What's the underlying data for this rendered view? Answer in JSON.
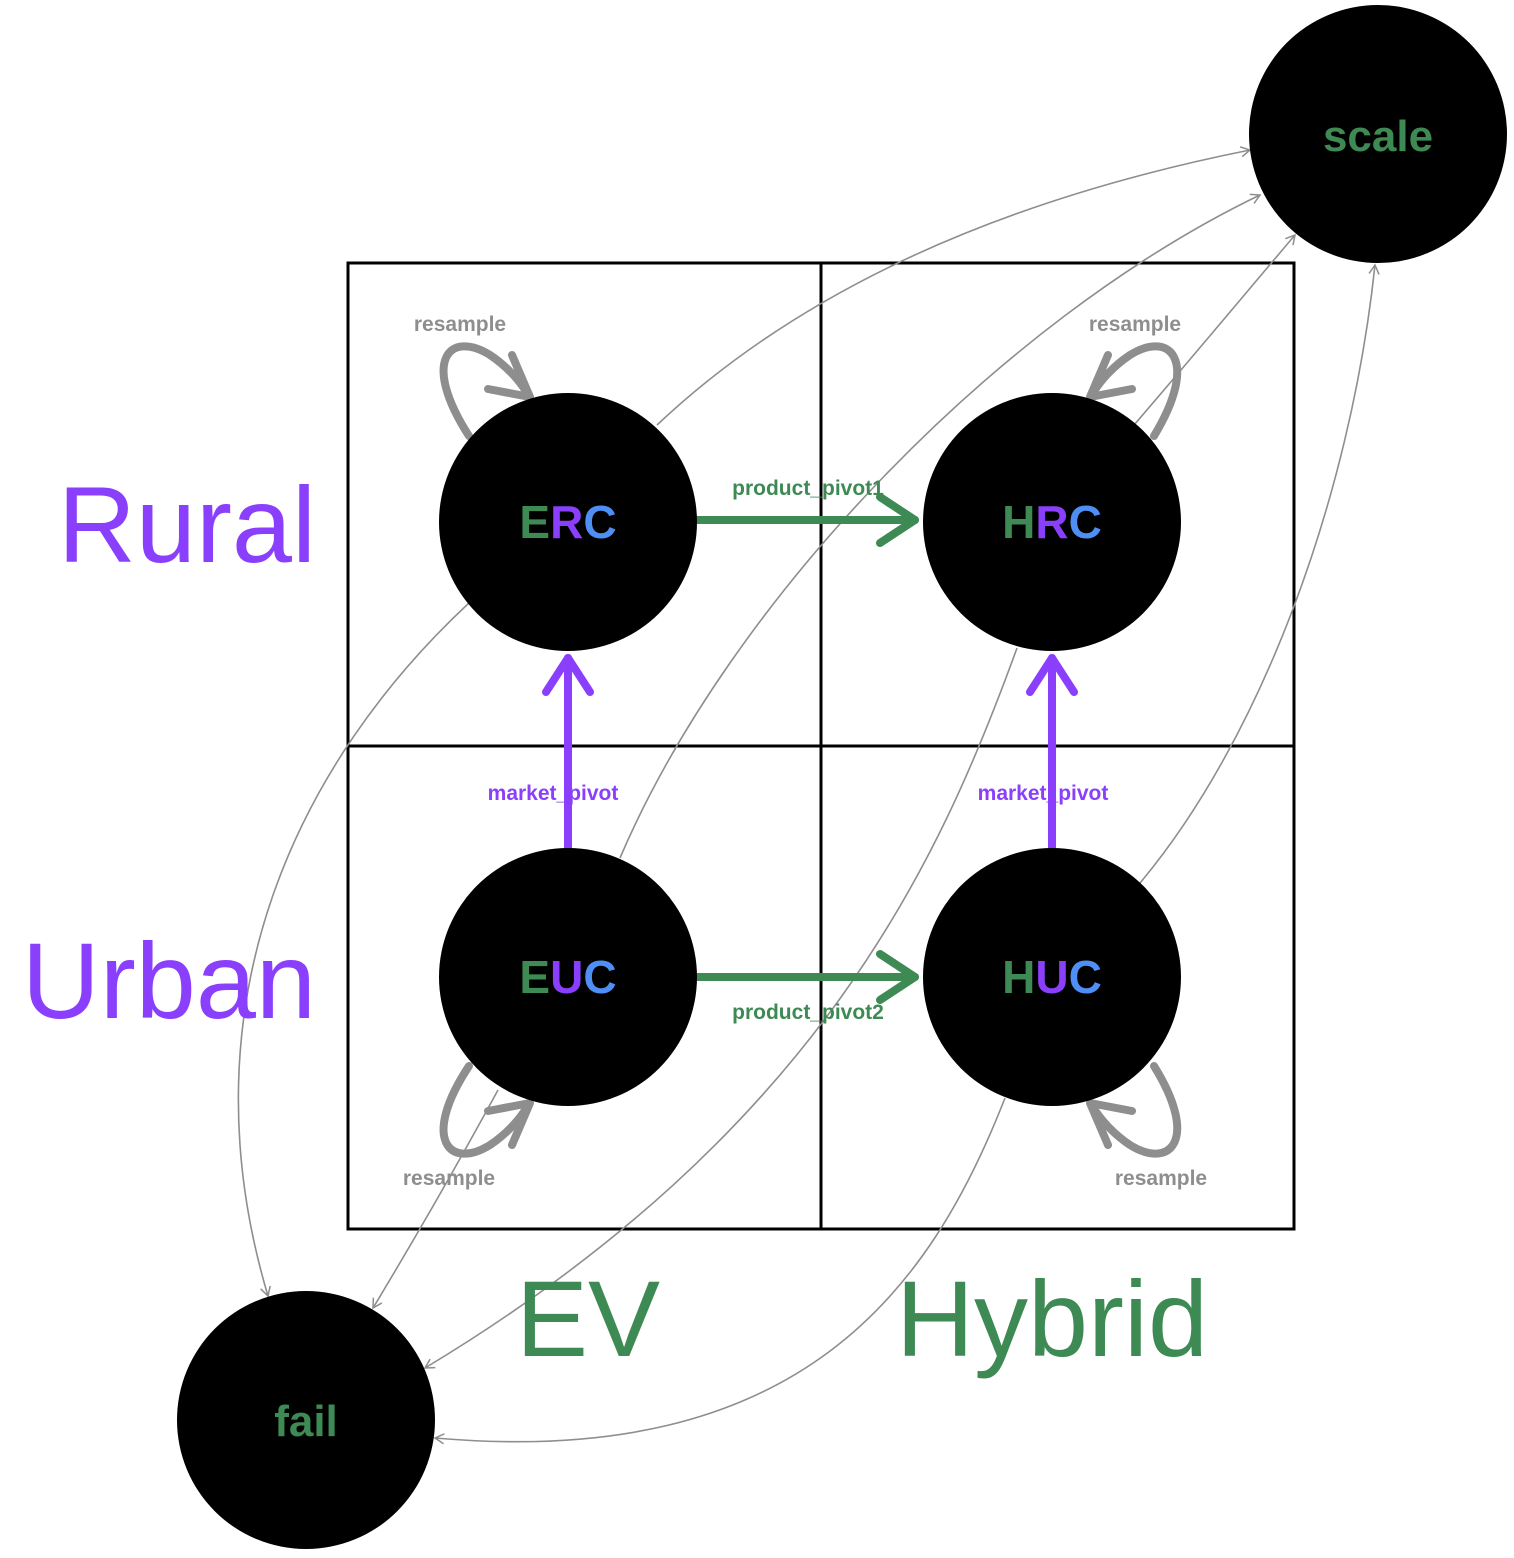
{
  "colors": {
    "purple": "#8a3ffc",
    "green": "#3e8a54",
    "blue": "#4f8ff5",
    "gray": "#8e8e8e",
    "node_fill": "#000000",
    "grid": "#000000"
  },
  "axes": {
    "rows": [
      "Rural",
      "Urban"
    ],
    "cols": [
      "EV",
      "Hybrid"
    ]
  },
  "nodes": {
    "erc": {
      "p1": "E",
      "p2": "R",
      "p3": "C"
    },
    "hrc": {
      "p1": "H",
      "p2": "R",
      "p3": "C"
    },
    "euc": {
      "p1": "E",
      "p2": "U",
      "p3": "C"
    },
    "huc": {
      "p1": "H",
      "p2": "U",
      "p3": "C"
    },
    "scale": "scale",
    "fail": "fail"
  },
  "edges": {
    "product_pivot1": "product_pivot1",
    "product_pivot2": "product_pivot2",
    "market_pivot_ev": "market_pivot",
    "market_pivot_hybrid": "market_pivot",
    "resample_erc": "resample",
    "resample_hrc": "resample",
    "resample_euc": "resample",
    "resample_huc": "resample"
  }
}
